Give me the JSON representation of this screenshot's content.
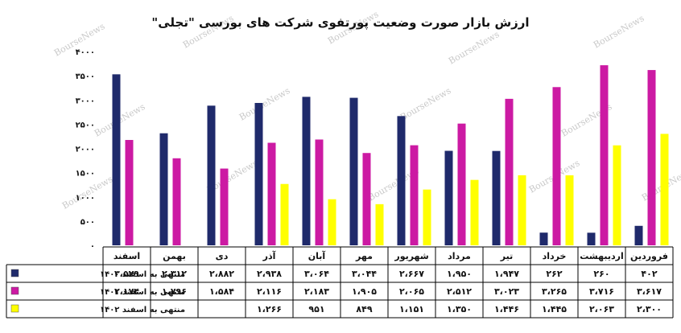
{
  "chart_data": {
    "type": "bar",
    "title": "ارزش بازار صورت وضعیت پورتفوی شرکت های بورسی \"تجلی\"",
    "watermark": "BourseNews",
    "categories": [
      "فروردین",
      "اردیبهشت",
      "خرداد",
      "تیر",
      "مرداد",
      "شهریور",
      "مهر",
      "آبان",
      "آذر",
      "دی",
      "بهمن",
      "اسفند"
    ],
    "y_ticks": [
      "۴۰۰۰",
      "۳۵۰۰",
      "۳۰۰۰",
      "۲۵۰۰",
      "۲۰۰۰",
      "۱۵۰۰",
      "۱۰۰۰",
      "۵۰۰",
      "۰"
    ],
    "ylim": [
      0,
      4000
    ],
    "grid": false,
    "series": [
      {
        "name": "منتهی به اسفند ۱۴۰۰",
        "color": "#1f2a6b",
        "values": [
          402,
          260,
          262,
          1947,
          1950,
          2667,
          3044,
          3064,
          2938,
          2882,
          2312,
          3529
        ],
        "labels": [
          "۴۰۲",
          "۲۶۰",
          "۲۶۲",
          "۱،۹۴۷",
          "۱،۹۵۰",
          "۲،۶۶۷",
          "۳،۰۴۴",
          "۳،۰۶۴",
          "۲،۹۳۸",
          "۲،۸۸۲",
          "۲،۳۱۲",
          "۳،۵۲۹"
        ]
      },
      {
        "name": "منتهی به اسفند ۱۴۰۱",
        "color": "#cc1aa3",
        "values": [
          3617,
          3716,
          3265,
          3023,
          2512,
          2065,
          1905,
          2183,
          2116,
          1584,
          1796,
          2174
        ],
        "labels": [
          "۳،۶۱۷",
          "۳،۷۱۶",
          "۳،۲۶۵",
          "۳،۰۲۳",
          "۲،۵۱۲",
          "۲،۰۶۵",
          "۱،۹۰۵",
          "۲،۱۸۳",
          "۲،۱۱۶",
          "۱،۵۸۴",
          "۱،۷۹۶",
          "۲،۱۷۴"
        ]
      },
      {
        "name": "منتهی به اسفند ۱۴۰۲",
        "color": "#ffff00",
        "values": [
          2300,
          2063,
          1445,
          1446,
          1350,
          1151,
          849,
          951,
          1266,
          null,
          null,
          null
        ],
        "labels": [
          "۲،۳۰۰",
          "۲،۰۶۳",
          "۱،۴۴۵",
          "۱،۴۴۶",
          "۱،۳۵۰",
          "۱،۱۵۱",
          "۸۴۹",
          "۹۵۱",
          "۱،۲۶۶",
          "",
          "",
          ""
        ]
      }
    ]
  }
}
